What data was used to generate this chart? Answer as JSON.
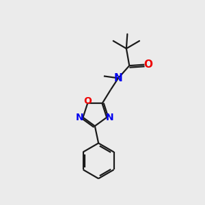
{
  "background_color": "#ebebeb",
  "bond_color": "#1a1a1a",
  "N_color": "#0000ee",
  "O_color": "#ee0000",
  "figsize": [
    3.0,
    3.0
  ],
  "dpi": 100,
  "xlim": [
    0,
    10
  ],
  "ylim": [
    0,
    10
  ]
}
